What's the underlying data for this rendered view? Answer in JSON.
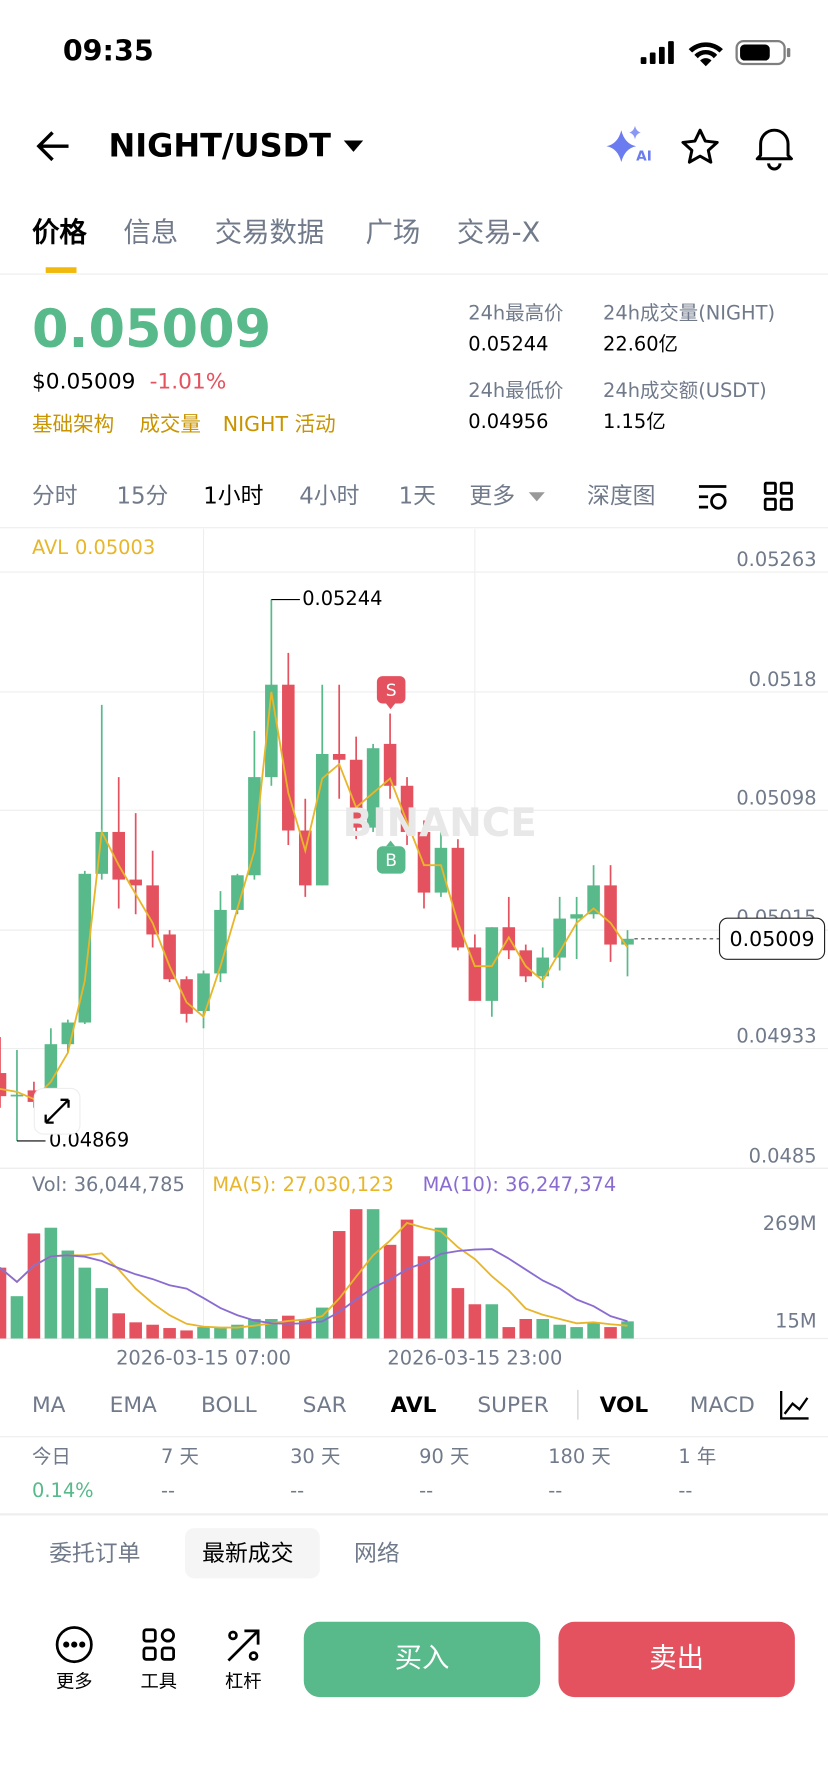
{
  "status": {
    "time": "09:35"
  },
  "header": {
    "pair": "NIGHT/USDT",
    "ai": "AI"
  },
  "tabs": [
    "价格",
    "信息",
    "交易数据",
    "广场",
    "交易-X"
  ],
  "price": {
    "last": "0.05009",
    "usd": "$0.05009",
    "change": "-1.01%",
    "tags": [
      "基础架构",
      "成交量",
      "NIGHT 活动"
    ]
  },
  "stats": [
    {
      "label": "24h最高价",
      "value": "0.05244"
    },
    {
      "label": "24h成交量(NIGHT)",
      "value": "22.60亿"
    },
    {
      "label": "24h最低价",
      "value": "0.04956"
    },
    {
      "label": "24h成交额(USDT)",
      "value": "1.15亿"
    }
  ],
  "intervals": [
    "分时",
    "15分",
    "1小时",
    "4小时",
    "1天",
    "更多",
    "深度图"
  ],
  "chart": {
    "type": "candlestick",
    "avl_label": "AVL",
    "watermark": "BINANCE",
    "markers": [
      "S",
      "B"
    ],
    "ylim": [
      0.0485,
      0.05293
    ],
    "yticks": [
      0.05263,
      0.0518,
      0.05098,
      0.05015,
      0.04933,
      0.0485
    ],
    "categories": [
      null,
      null,
      null,
      null,
      null,
      null,
      null,
      null,
      null,
      null,
      null,
      null,
      "2026-03-15 07:00",
      null,
      null,
      null,
      null,
      null,
      null,
      null,
      null,
      null,
      null,
      null,
      null,
      null,
      null,
      null,
      "2026-03-15 23:00",
      null,
      null,
      null,
      null,
      null,
      null,
      null,
      null,
      null
    ],
    "ohlc": [
      [
        0.04916,
        0.04941,
        0.04892,
        0.049
      ],
      [
        0.049,
        0.04932,
        0.04869,
        0.04901
      ],
      [
        0.04904,
        0.0491,
        0.04892,
        0.04896
      ],
      [
        0.04904,
        0.04947,
        0.04892,
        0.04936
      ],
      [
        0.04936,
        0.04953,
        0.0493,
        0.04951
      ],
      [
        0.04951,
        0.05056,
        0.0495,
        0.05054
      ],
      [
        0.05054,
        0.05171,
        0.0505,
        0.05083
      ],
      [
        0.05083,
        0.05121,
        0.0503,
        0.0505
      ],
      [
        0.0505,
        0.05096,
        0.05026,
        0.05046
      ],
      [
        0.05046,
        0.0507,
        0.05003,
        0.05012
      ],
      [
        0.05012,
        0.05015,
        0.04979,
        0.04981
      ],
      [
        0.04981,
        0.04983,
        0.04951,
        0.04957
      ],
      [
        0.04959,
        0.04987,
        0.04947,
        0.04985
      ],
      [
        0.04985,
        0.05042,
        0.04979,
        0.05029
      ],
      [
        0.05029,
        0.05054,
        0.05026,
        0.05053
      ],
      [
        0.05053,
        0.05153,
        0.0505,
        0.05121
      ],
      [
        0.05121,
        0.05244,
        0.05115,
        0.05185
      ],
      [
        0.05185,
        0.05207,
        0.05074,
        0.05084
      ],
      [
        0.05084,
        0.05106,
        0.05038,
        0.05046
      ],
      [
        0.05046,
        0.05185,
        0.05046,
        0.05137
      ],
      [
        0.05137,
        0.05185,
        0.05106,
        0.05133
      ],
      [
        0.05133,
        0.05149,
        0.05078,
        0.05086
      ],
      [
        0.05086,
        0.05144,
        0.05083,
        0.05141
      ],
      [
        0.05144,
        0.05165,
        0.05106,
        0.05115
      ],
      [
        0.05115,
        0.05121,
        0.05074,
        0.05083
      ],
      [
        0.05083,
        0.05091,
        0.0503,
        0.05041
      ],
      [
        0.05041,
        0.05083,
        0.05038,
        0.05072
      ],
      [
        0.05072,
        0.05078,
        0.05001,
        0.05003
      ],
      [
        0.05003,
        0.05012,
        0.04966,
        0.04966
      ],
      [
        0.04966,
        0.05017,
        0.04955,
        0.05017
      ],
      [
        0.05017,
        0.05038,
        0.04995,
        0.05001
      ],
      [
        0.05001,
        0.05005,
        0.04979,
        0.04983
      ],
      [
        0.04983,
        0.05003,
        0.04975,
        0.04996
      ],
      [
        0.04996,
        0.05038,
        0.04987,
        0.05023
      ],
      [
        0.05023,
        0.05038,
        0.04995,
        0.05026
      ],
      [
        0.05026,
        0.0506,
        0.05023,
        0.05046
      ],
      [
        0.05046,
        0.0506,
        0.04993,
        0.05005
      ],
      [
        0.05005,
        0.05015,
        0.04983,
        0.05009
      ]
    ],
    "avl": [
      0.04905,
      0.04903,
      0.04898,
      0.0491,
      0.0493,
      0.0498,
      0.05083,
      0.0506,
      0.0504,
      0.0502,
      0.0499,
      0.04965,
      0.04955,
      0.0499,
      0.0503,
      0.0507,
      0.0518,
      0.0511,
      0.0507,
      0.0512,
      0.0513,
      0.051,
      0.0511,
      0.0512,
      0.0509,
      0.0506,
      0.0506,
      0.0502,
      0.0499,
      0.0499,
      0.0501,
      0.0499,
      0.0498,
      0.05,
      0.0502,
      0.0503,
      0.0502,
      0.05003
    ],
    "volume_legend": [
      "Vol: 36,044,785",
      "MA(5): 27,030,123",
      "MA(10): 36,247,374"
    ],
    "vol_ylim": [
      0,
      293
    ],
    "vol_yticks": [
      {
        "value": 269,
        "label": "269M"
      },
      {
        "value": 15,
        "label": "15M"
      }
    ],
    "volume": [
      149,
      89,
      221,
      233,
      185,
      149,
      106,
      53,
      34,
      29,
      22,
      17,
      24,
      24,
      29,
      41,
      41,
      48,
      41,
      65,
      226,
      272,
      272,
      197,
      250,
      173,
      233,
      106,
      72,
      72,
      24,
      41,
      41,
      29,
      24,
      34,
      24,
      36.044785
    ],
    "ma5": [
      149,
      119,
      153,
      173,
      175,
      175,
      179,
      145,
      105,
      74,
      49,
      31,
      25,
      23,
      23,
      27,
      32,
      37,
      40,
      47,
      84,
      130,
      175,
      206,
      243,
      233,
      225,
      192,
      167,
      131,
      101,
      63,
      50,
      41,
      32,
      34,
      30,
      27.030123
    ],
    "ma10": [
      149,
      119,
      153,
      173,
      175,
      172,
      163,
      148,
      135,
      125,
      112,
      105,
      85,
      64,
      49,
      38,
      32,
      31,
      32,
      36,
      56,
      82,
      107,
      124,
      146,
      159,
      178,
      184,
      187,
      188,
      168,
      145,
      122,
      105,
      82,
      68,
      47,
      36.247374
    ]
  },
  "indicators": [
    "MA",
    "EMA",
    "BOLL",
    "SAR",
    "AVL",
    "SUPER",
    "VOL",
    "MACD"
  ],
  "performance": [
    {
      "label": "今日",
      "value": "0.14%"
    },
    {
      "label": "7 天",
      "value": "--"
    },
    {
      "label": "30 天",
      "value": "--"
    },
    {
      "label": "90 天",
      "value": "--"
    },
    {
      "label": "180 天",
      "value": "--"
    },
    {
      "label": "1 年",
      "value": "--"
    }
  ],
  "bottom_tabs": [
    "委托订单",
    "最新成交",
    "网络"
  ],
  "toolbar": [
    "更多",
    "工具",
    "杠杆"
  ],
  "actions": {
    "buy": "买入",
    "sell": "卖出"
  }
}
